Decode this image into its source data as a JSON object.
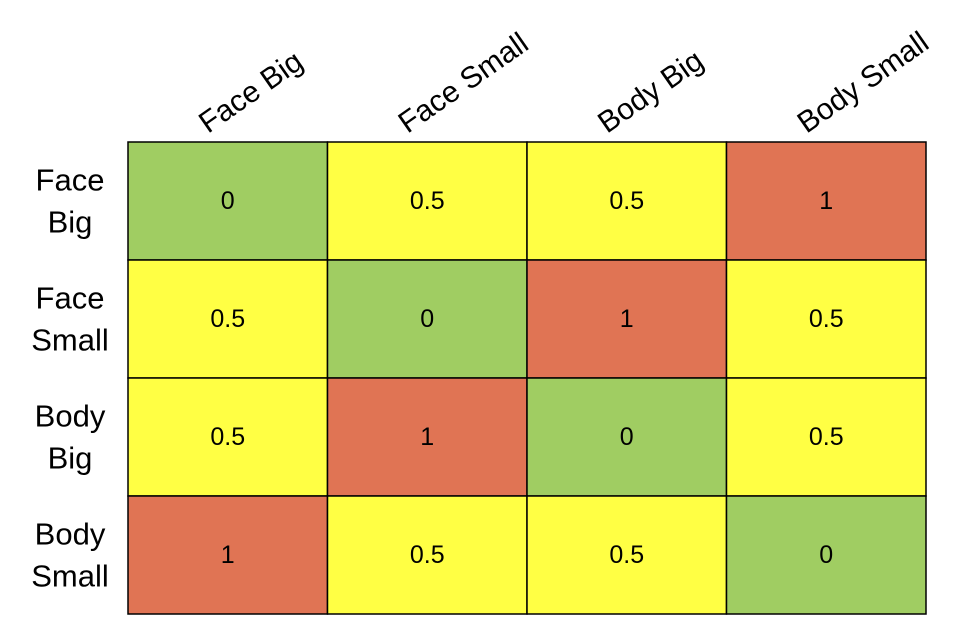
{
  "chart_data": {
    "type": "heatmap",
    "title": "",
    "xlabel": "",
    "ylabel": "",
    "columns": [
      "Face Big",
      "Face Small",
      "Body Big",
      "Body Small"
    ],
    "rows": [
      [
        "Face",
        "Big"
      ],
      [
        "Face",
        "Small"
      ],
      [
        "Body",
        "Big"
      ],
      [
        "Body",
        "Small"
      ]
    ],
    "values": [
      [
        0,
        0.5,
        0.5,
        1
      ],
      [
        0.5,
        0,
        1,
        0.5
      ],
      [
        0.5,
        1,
        0,
        0.5
      ],
      [
        1,
        0.5,
        0.5,
        0
      ]
    ],
    "value_labels": [
      [
        "0",
        "0.5",
        "0.5",
        "1"
      ],
      [
        "0.5",
        "0",
        "1",
        "0.5"
      ],
      [
        "0.5",
        "1",
        "0",
        "0.5"
      ],
      [
        "1",
        "0.5",
        "0.5",
        "0"
      ]
    ],
    "color_scale": {
      "0": "#a0cd62",
      "0.5": "#ffff44",
      "1": "#e07454"
    },
    "legend": "none",
    "grid": true
  }
}
